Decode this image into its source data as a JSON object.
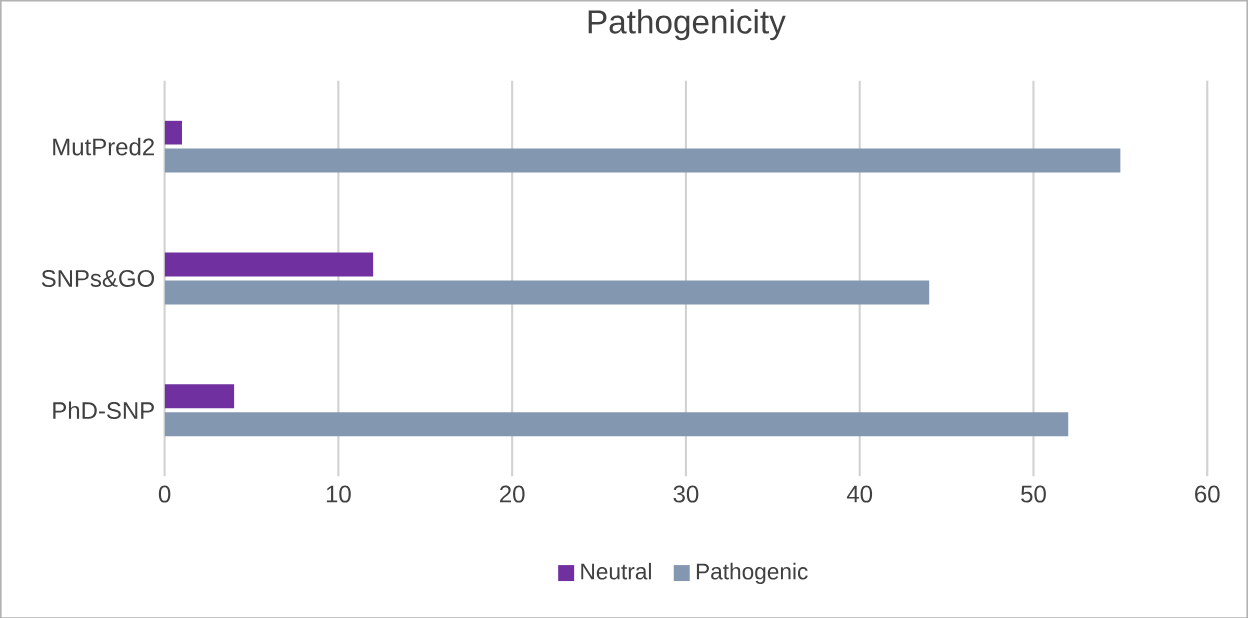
{
  "chart_data": {
    "type": "bar",
    "orientation": "horizontal",
    "title": "Pathogenicity",
    "categories": [
      "MutPred2",
      "SNPs&GO",
      "PhD-SNP"
    ],
    "series": [
      {
        "name": "Neutral",
        "color": "#7030a0",
        "values": [
          1,
          12,
          4
        ]
      },
      {
        "name": "Pathogenic",
        "color": "#8497b0",
        "values": [
          55,
          44,
          52
        ]
      }
    ],
    "xlim": [
      0,
      60
    ],
    "xticks": [
      0,
      10,
      20,
      30,
      40,
      50,
      60
    ],
    "grid": "x",
    "legend": "bottom"
  }
}
